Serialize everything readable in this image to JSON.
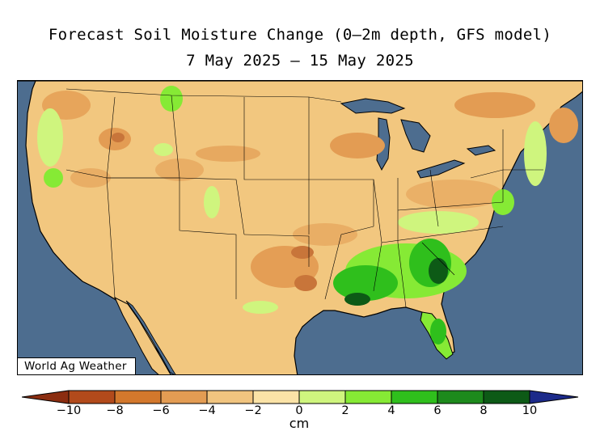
{
  "title": "Forecast Soil Moisture Change (0–2m depth, GFS model)",
  "subtitle": "7 May 2025 – 15 May 2025",
  "credit": "World Ag Weather",
  "colorbar": {
    "unit": "cm",
    "ticks": [
      "−10",
      "−8",
      "−6",
      "−4",
      "−2",
      "0",
      "2",
      "4",
      "6",
      "8",
      "10"
    ],
    "colors": [
      "#8b2d10",
      "#b24a1b",
      "#d3782c",
      "#e39c53",
      "#f1c47f",
      "#fbe3a7",
      "#cff57e",
      "#86ea35",
      "#2fbf1c",
      "#1d8a1c",
      "#0d5a16",
      "#1c2a8a"
    ]
  },
  "map": {
    "ocean_color": "#4d6d8f",
    "land_color": "#f2c77f",
    "dry_color": "#e39c53",
    "very_dry_color": "#c8753a",
    "wet_color": "#86ea35",
    "very_wet_color": "#2fbf1c",
    "wettest_color": "#0d5a16"
  }
}
